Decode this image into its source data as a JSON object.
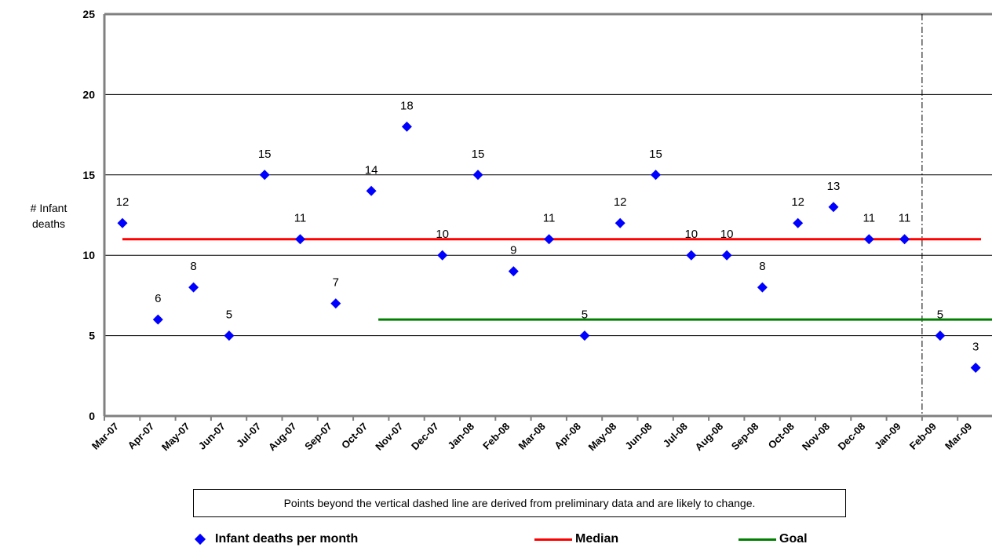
{
  "chart_data": {
    "type": "scatter",
    "categories": [
      "Mar-07",
      "Apr-07",
      "May-07",
      "Jun-07",
      "Jul-07",
      "Aug-07",
      "Sep-07",
      "Oct-07",
      "Nov-07",
      "Dec-07",
      "Jan-08",
      "Feb-08",
      "Mar-08",
      "Apr-08",
      "May-08",
      "Jun-08",
      "Jul-08",
      "Aug-08",
      "Sep-08",
      "Oct-08",
      "Nov-08",
      "Dec-08",
      "Jan-09",
      "Feb-09",
      "Mar-09"
    ],
    "series": [
      {
        "name": "Infant deaths per month",
        "values": [
          12,
          6,
          8,
          5,
          15,
          11,
          7,
          14,
          18,
          10,
          15,
          9,
          11,
          5,
          12,
          15,
          10,
          10,
          8,
          12,
          13,
          11,
          11,
          5,
          3
        ],
        "color": "#0000ff"
      }
    ],
    "median": {
      "name": "Median",
      "value": 11,
      "color": "#ff0000"
    },
    "goal": {
      "name": "Goal",
      "value": 6,
      "color": "#008000"
    },
    "ylabel": "# Infant deaths",
    "ylim": [
      0,
      25
    ],
    "yticks": [
      0,
      5,
      10,
      15,
      20,
      25
    ],
    "grid": true,
    "preliminary_data_boundary": "between Jan-09 and Feb-09",
    "note": "Points beyond the vertical dashed line are derived from preliminary data and are likely to change.",
    "legend_position": "bottom"
  }
}
